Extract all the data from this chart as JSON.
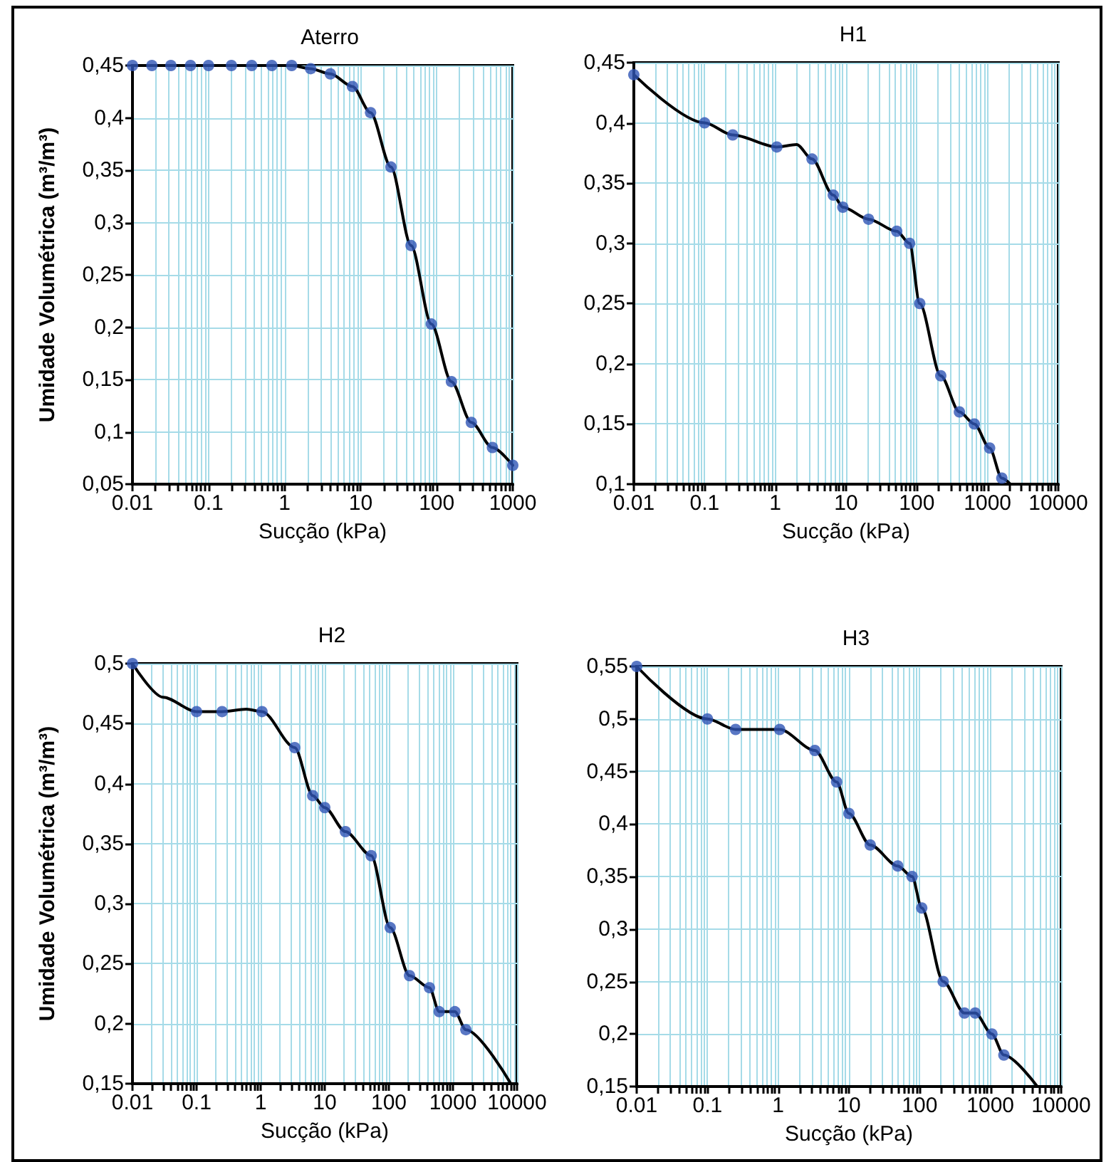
{
  "chart_data": [
    {
      "type": "line",
      "title": "Aterro",
      "xlabel": "Sucção (kPa)",
      "ylabel": "Umidade Volumétrica (m³/m³)",
      "log": "x",
      "grid": true,
      "xlim": [
        0.01,
        1000
      ],
      "ylim": [
        0.05,
        0.45
      ],
      "xticks": [
        0.01,
        {
          "value": 0.02,
          "label": null
        },
        {
          "value": 0.03,
          "label": null
        },
        {
          "value": 0.04,
          "label": null
        },
        {
          "value": 0.05,
          "label": null
        },
        {
          "value": 0.06,
          "label": null
        },
        {
          "value": 0.07,
          "label": null
        },
        {
          "value": 0.08,
          "label": null
        },
        {
          "value": 0.09,
          "label": null
        },
        0.1,
        {
          "value": 0.2,
          "label": null
        },
        {
          "value": 0.3,
          "label": null
        },
        {
          "value": 0.4,
          "label": null
        },
        {
          "value": 0.5,
          "label": null
        },
        {
          "value": 0.6,
          "label": null
        },
        {
          "value": 0.7,
          "label": null
        },
        {
          "value": 0.8,
          "label": null
        },
        {
          "value": 0.9,
          "label": null
        },
        1,
        {
          "value": 2,
          "label": null
        },
        {
          "value": 3,
          "label": null
        },
        {
          "value": 4,
          "label": null
        },
        {
          "value": 5,
          "label": null
        },
        {
          "value": 6,
          "label": null
        },
        {
          "value": 7,
          "label": null
        },
        {
          "value": 8,
          "label": null
        },
        {
          "value": 9,
          "label": null
        },
        10,
        {
          "value": 20,
          "label": null
        },
        {
          "value": 30,
          "label": null
        },
        {
          "value": 40,
          "label": null
        },
        {
          "value": 50,
          "label": null
        },
        {
          "value": 60,
          "label": null
        },
        {
          "value": 70,
          "label": null
        },
        {
          "value": 80,
          "label": null
        },
        {
          "value": 90,
          "label": null
        },
        100,
        {
          "value": 200,
          "label": null
        },
        {
          "value": 300,
          "label": null
        },
        {
          "value": 400,
          "label": null
        },
        {
          "value": 500,
          "label": null
        },
        {
          "value": 600,
          "label": null
        },
        {
          "value": 700,
          "label": null
        },
        {
          "value": 800,
          "label": null
        },
        {
          "value": 900,
          "label": null
        },
        1000
      ],
      "yticks": [
        {
          "value": 0.05,
          "label": "0,05"
        },
        {
          "value": 0.1,
          "label": "0,1"
        },
        {
          "value": 0.15,
          "label": "0,15"
        },
        {
          "value": 0.2,
          "label": "0,2"
        },
        {
          "value": 0.25,
          "label": "0,25"
        },
        {
          "value": 0.3,
          "label": "0,3"
        },
        {
          "value": 0.35,
          "label": "0,35"
        },
        {
          "value": 0.4,
          "label": "0,4"
        },
        {
          "value": 0.45,
          "label": "0,45"
        }
      ],
      "series": [
        {
          "type": "line",
          "color": "#000000",
          "marker": "none",
          "x": [
            0.01,
            0.018,
            0.032,
            0.058,
            0.1,
            0.2,
            0.37,
            0.68,
            1.24,
            2.2,
            4,
            7.8,
            13.5,
            25,
            46,
            85,
            156,
            285,
            540,
            1000
          ],
          "values": [
            0.45,
            0.45,
            0.45,
            0.45,
            0.45,
            0.45,
            0.45,
            0.45,
            0.45,
            0.447,
            0.442,
            0.43,
            0.405,
            0.353,
            0.278,
            0.203,
            0.148,
            0.109,
            0.085,
            0.068
          ]
        },
        {
          "type": "scatter",
          "color": "#2f55b5",
          "marker": "circle",
          "x": [
            0.01,
            0.018,
            0.032,
            0.058,
            0.1,
            0.2,
            0.37,
            0.68,
            1.24,
            2.2,
            4,
            7.8,
            13.5,
            25,
            46,
            85,
            156,
            285,
            540,
            1000
          ],
          "values": [
            0.45,
            0.45,
            0.45,
            0.45,
            0.45,
            0.45,
            0.45,
            0.45,
            0.45,
            0.447,
            0.442,
            0.43,
            0.405,
            0.353,
            0.278,
            0.203,
            0.148,
            0.109,
            0.085,
            0.068
          ]
        }
      ]
    },
    {
      "type": "line",
      "title": "H1",
      "xlabel": "Sucção (kPa)",
      "log": "x",
      "grid": true,
      "xlim": [
        0.01,
        10000
      ],
      "ylim": [
        0.1,
        0.45
      ],
      "xticks": [
        0.01,
        {
          "value": 0.02,
          "label": null
        },
        {
          "value": 0.03,
          "label": null
        },
        {
          "value": 0.04,
          "label": null
        },
        {
          "value": 0.05,
          "label": null
        },
        {
          "value": 0.06,
          "label": null
        },
        {
          "value": 0.07,
          "label": null
        },
        {
          "value": 0.08,
          "label": null
        },
        {
          "value": 0.09,
          "label": null
        },
        0.1,
        {
          "value": 0.2,
          "label": null
        },
        {
          "value": 0.3,
          "label": null
        },
        {
          "value": 0.4,
          "label": null
        },
        {
          "value": 0.5,
          "label": null
        },
        {
          "value": 0.6,
          "label": null
        },
        {
          "value": 0.7,
          "label": null
        },
        {
          "value": 0.8,
          "label": null
        },
        {
          "value": 0.9,
          "label": null
        },
        1,
        {
          "value": 2,
          "label": null
        },
        {
          "value": 3,
          "label": null
        },
        {
          "value": 4,
          "label": null
        },
        {
          "value": 5,
          "label": null
        },
        {
          "value": 6,
          "label": null
        },
        {
          "value": 7,
          "label": null
        },
        {
          "value": 8,
          "label": null
        },
        {
          "value": 9,
          "label": null
        },
        10,
        {
          "value": 20,
          "label": null
        },
        {
          "value": 30,
          "label": null
        },
        {
          "value": 40,
          "label": null
        },
        {
          "value": 50,
          "label": null
        },
        {
          "value": 60,
          "label": null
        },
        {
          "value": 70,
          "label": null
        },
        {
          "value": 80,
          "label": null
        },
        {
          "value": 90,
          "label": null
        },
        100,
        {
          "value": 200,
          "label": null
        },
        {
          "value": 300,
          "label": null
        },
        {
          "value": 400,
          "label": null
        },
        {
          "value": 500,
          "label": null
        },
        {
          "value": 600,
          "label": null
        },
        {
          "value": 700,
          "label": null
        },
        {
          "value": 800,
          "label": null
        },
        {
          "value": 900,
          "label": null
        },
        1000,
        {
          "value": 2000,
          "label": null
        },
        {
          "value": 3000,
          "label": null
        },
        {
          "value": 4000,
          "label": null
        },
        {
          "value": 5000,
          "label": null
        },
        {
          "value": 6000,
          "label": null
        },
        {
          "value": 7000,
          "label": null
        },
        {
          "value": 8000,
          "label": null
        },
        {
          "value": 9000,
          "label": null
        },
        10000
      ],
      "yticks": [
        {
          "value": 0.1,
          "label": "0,1"
        },
        {
          "value": 0.15,
          "label": "0,15"
        },
        {
          "value": 0.2,
          "label": "0,2"
        },
        {
          "value": 0.25,
          "label": "0,25"
        },
        {
          "value": 0.3,
          "label": "0,3"
        },
        {
          "value": 0.35,
          "label": "0,35"
        },
        {
          "value": 0.4,
          "label": "0,4"
        },
        {
          "value": 0.45,
          "label": "0,45"
        }
      ],
      "series": [
        {
          "type": "line",
          "color": "#000000",
          "marker": "none",
          "x": [
            0.01,
            0.1,
            0.25,
            1.05,
            2,
            3.3,
            6.6,
            9,
            20.8,
            52,
            79,
            110,
            218,
            400,
            650,
            1070,
            1590,
            2100
          ],
          "values": [
            0.44,
            0.4,
            0.39,
            0.38,
            0.382,
            0.37,
            0.34,
            0.33,
            0.32,
            0.31,
            0.3,
            0.25,
            0.19,
            0.16,
            0.15,
            0.13,
            0.105,
            0.1
          ]
        },
        {
          "type": "scatter",
          "color": "#2f55b5",
          "marker": "circle",
          "x": [
            0.01,
            0.1,
            0.25,
            1.05,
            3.3,
            6.6,
            9,
            20.8,
            52,
            79,
            110,
            218,
            400,
            650,
            1070,
            1590
          ],
          "values": [
            0.44,
            0.4,
            0.39,
            0.38,
            0.37,
            0.34,
            0.33,
            0.32,
            0.31,
            0.3,
            0.25,
            0.19,
            0.16,
            0.15,
            0.13,
            0.105
          ]
        }
      ]
    },
    {
      "type": "line",
      "title": "H2",
      "xlabel": "Sucção (kPa)",
      "ylabel": "Umidade Volumétrica (m³/m³)",
      "log": "x",
      "grid": true,
      "xlim": [
        0.01,
        10000
      ],
      "ylim": [
        0.15,
        0.5
      ],
      "xticks": [
        0.01,
        {
          "value": 0.02,
          "label": null
        },
        {
          "value": 0.03,
          "label": null
        },
        {
          "value": 0.04,
          "label": null
        },
        {
          "value": 0.05,
          "label": null
        },
        {
          "value": 0.06,
          "label": null
        },
        {
          "value": 0.07,
          "label": null
        },
        {
          "value": 0.08,
          "label": null
        },
        {
          "value": 0.09,
          "label": null
        },
        0.1,
        {
          "value": 0.2,
          "label": null
        },
        {
          "value": 0.3,
          "label": null
        },
        {
          "value": 0.4,
          "label": null
        },
        {
          "value": 0.5,
          "label": null
        },
        {
          "value": 0.6,
          "label": null
        },
        {
          "value": 0.7,
          "label": null
        },
        {
          "value": 0.8,
          "label": null
        },
        {
          "value": 0.9,
          "label": null
        },
        1,
        {
          "value": 2,
          "label": null
        },
        {
          "value": 3,
          "label": null
        },
        {
          "value": 4,
          "label": null
        },
        {
          "value": 5,
          "label": null
        },
        {
          "value": 6,
          "label": null
        },
        {
          "value": 7,
          "label": null
        },
        {
          "value": 8,
          "label": null
        },
        {
          "value": 9,
          "label": null
        },
        10,
        {
          "value": 20,
          "label": null
        },
        {
          "value": 30,
          "label": null
        },
        {
          "value": 40,
          "label": null
        },
        {
          "value": 50,
          "label": null
        },
        {
          "value": 60,
          "label": null
        },
        {
          "value": 70,
          "label": null
        },
        {
          "value": 80,
          "label": null
        },
        {
          "value": 90,
          "label": null
        },
        100,
        {
          "value": 200,
          "label": null
        },
        {
          "value": 300,
          "label": null
        },
        {
          "value": 400,
          "label": null
        },
        {
          "value": 500,
          "label": null
        },
        {
          "value": 600,
          "label": null
        },
        {
          "value": 700,
          "label": null
        },
        {
          "value": 800,
          "label": null
        },
        {
          "value": 900,
          "label": null
        },
        1000,
        {
          "value": 2000,
          "label": null
        },
        {
          "value": 3000,
          "label": null
        },
        {
          "value": 4000,
          "label": null
        },
        {
          "value": 5000,
          "label": null
        },
        {
          "value": 6000,
          "label": null
        },
        {
          "value": 7000,
          "label": null
        },
        {
          "value": 8000,
          "label": null
        },
        {
          "value": 9000,
          "label": null
        },
        10000
      ],
      "yticks": [
        {
          "value": 0.15,
          "label": "0,15"
        },
        {
          "value": 0.2,
          "label": "0,2"
        },
        {
          "value": 0.25,
          "label": "0,25"
        },
        {
          "value": 0.3,
          "label": "0,3"
        },
        {
          "value": 0.35,
          "label": "0,35"
        },
        {
          "value": 0.4,
          "label": "0,4"
        },
        {
          "value": 0.45,
          "label": "0,45"
        },
        {
          "value": 0.5,
          "label": "0,5"
        }
      ],
      "series": [
        {
          "type": "line",
          "color": "#000000",
          "marker": "none",
          "x": [
            0.01,
            0.03,
            0.1,
            0.25,
            0.6,
            1.05,
            3.4,
            6.5,
            10,
            21,
            53,
            105,
            210,
            430,
            610,
            1070,
            1590,
            8000
          ],
          "values": [
            0.5,
            0.472,
            0.46,
            0.46,
            0.462,
            0.46,
            0.43,
            0.39,
            0.38,
            0.36,
            0.34,
            0.28,
            0.24,
            0.23,
            0.21,
            0.21,
            0.195,
            0.15
          ]
        },
        {
          "type": "scatter",
          "color": "#2f55b5",
          "marker": "circle",
          "x": [
            0.01,
            0.1,
            0.25,
            1.05,
            3.4,
            6.5,
            10,
            21,
            53,
            105,
            210,
            430,
            610,
            1070,
            1590
          ],
          "values": [
            0.5,
            0.46,
            0.46,
            0.46,
            0.43,
            0.39,
            0.38,
            0.36,
            0.34,
            0.28,
            0.24,
            0.23,
            0.21,
            0.21,
            0.195
          ]
        }
      ]
    },
    {
      "type": "line",
      "title": "H3",
      "xlabel": "Sucção (kPa)",
      "log": "x",
      "grid": true,
      "xlim": [
        0.01,
        10000
      ],
      "ylim": [
        0.15,
        0.55
      ],
      "xticks": [
        0.01,
        {
          "value": 0.02,
          "label": null
        },
        {
          "value": 0.03,
          "label": null
        },
        {
          "value": 0.04,
          "label": null
        },
        {
          "value": 0.05,
          "label": null
        },
        {
          "value": 0.06,
          "label": null
        },
        {
          "value": 0.07,
          "label": null
        },
        {
          "value": 0.08,
          "label": null
        },
        {
          "value": 0.09,
          "label": null
        },
        0.1,
        {
          "value": 0.2,
          "label": null
        },
        {
          "value": 0.3,
          "label": null
        },
        {
          "value": 0.4,
          "label": null
        },
        {
          "value": 0.5,
          "label": null
        },
        {
          "value": 0.6,
          "label": null
        },
        {
          "value": 0.7,
          "label": null
        },
        {
          "value": 0.8,
          "label": null
        },
        {
          "value": 0.9,
          "label": null
        },
        1,
        {
          "value": 2,
          "label": null
        },
        {
          "value": 3,
          "label": null
        },
        {
          "value": 4,
          "label": null
        },
        {
          "value": 5,
          "label": null
        },
        {
          "value": 6,
          "label": null
        },
        {
          "value": 7,
          "label": null
        },
        {
          "value": 8,
          "label": null
        },
        {
          "value": 9,
          "label": null
        },
        10,
        {
          "value": 20,
          "label": null
        },
        {
          "value": 30,
          "label": null
        },
        {
          "value": 40,
          "label": null
        },
        {
          "value": 50,
          "label": null
        },
        {
          "value": 60,
          "label": null
        },
        {
          "value": 70,
          "label": null
        },
        {
          "value": 80,
          "label": null
        },
        {
          "value": 90,
          "label": null
        },
        100,
        {
          "value": 200,
          "label": null
        },
        {
          "value": 300,
          "label": null
        },
        {
          "value": 400,
          "label": null
        },
        {
          "value": 500,
          "label": null
        },
        {
          "value": 600,
          "label": null
        },
        {
          "value": 700,
          "label": null
        },
        {
          "value": 800,
          "label": null
        },
        {
          "value": 900,
          "label": null
        },
        1000,
        {
          "value": 2000,
          "label": null
        },
        {
          "value": 3000,
          "label": null
        },
        {
          "value": 4000,
          "label": null
        },
        {
          "value": 5000,
          "label": null
        },
        {
          "value": 6000,
          "label": null
        },
        {
          "value": 7000,
          "label": null
        },
        {
          "value": 8000,
          "label": null
        },
        {
          "value": 9000,
          "label": null
        },
        10000
      ],
      "yticks": [
        {
          "value": 0.15,
          "label": "0,15"
        },
        {
          "value": 0.2,
          "label": "0,2"
        },
        {
          "value": 0.25,
          "label": "0,25"
        },
        {
          "value": 0.3,
          "label": "0,3"
        },
        {
          "value": 0.35,
          "label": "0,35"
        },
        {
          "value": 0.4,
          "label": "0,4"
        },
        {
          "value": 0.45,
          "label": "0,45"
        },
        {
          "value": 0.5,
          "label": "0,5"
        },
        {
          "value": 0.55,
          "label": "0,55"
        }
      ],
      "series": [
        {
          "type": "line",
          "color": "#000000",
          "marker": "none",
          "x": [
            0.01,
            0.1,
            0.25,
            1.05,
            3.3,
            6.7,
            10,
            20,
            49,
            78,
            107,
            215,
            430,
            610,
            1050,
            1550,
            4600
          ],
          "values": [
            0.55,
            0.5,
            0.49,
            0.49,
            0.47,
            0.44,
            0.41,
            0.38,
            0.36,
            0.35,
            0.32,
            0.25,
            0.22,
            0.22,
            0.2,
            0.18,
            0.15
          ]
        },
        {
          "type": "scatter",
          "color": "#2f55b5",
          "marker": "circle",
          "x": [
            0.01,
            0.1,
            0.25,
            1.05,
            3.3,
            6.7,
            10,
            20,
            49,
            78,
            107,
            215,
            430,
            610,
            1050,
            1550
          ],
          "values": [
            0.55,
            0.5,
            0.49,
            0.49,
            0.47,
            0.44,
            0.41,
            0.38,
            0.36,
            0.35,
            0.32,
            0.25,
            0.22,
            0.22,
            0.2,
            0.18
          ]
        }
      ]
    }
  ]
}
